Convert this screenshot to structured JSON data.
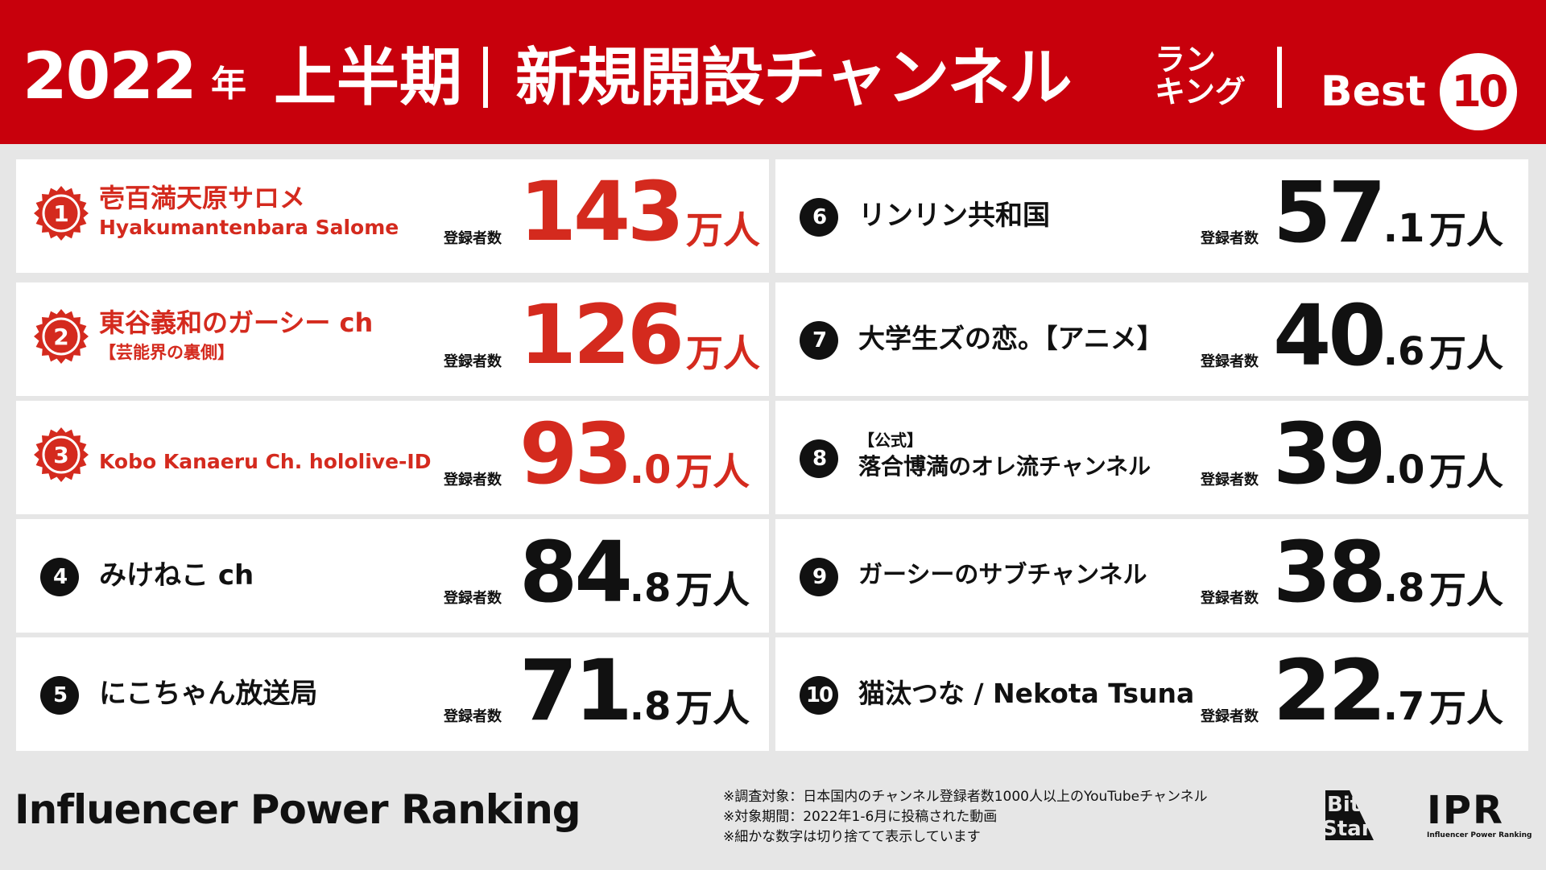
{
  "header": {
    "year": "2022",
    "nen": "年",
    "half": "上半期",
    "main": "新規開設チャンネル",
    "rank_top": "ラン",
    "rank_bottom": "キング",
    "best": "Best",
    "best_num": "10"
  },
  "label": "登録者数",
  "entries": [
    {
      "rank": "1",
      "name": "壱百満天原サロメ",
      "sub": "Hyakumantenbara Salome",
      "int": "143",
      "dec": "",
      "unit": "万人"
    },
    {
      "rank": "2",
      "name": "東谷義和のガーシー ch",
      "sub": "【芸能界の裏側】",
      "int": "126",
      "dec": "",
      "unit": "万人"
    },
    {
      "rank": "3",
      "name": "Kobo Kanaeru Ch. hololive-ID",
      "sub": "",
      "int": "93",
      "dec": ".0",
      "unit": "万人"
    },
    {
      "rank": "4",
      "name": "みけねこ ch",
      "sub": "",
      "int": "84",
      "dec": ".8",
      "unit": "万人"
    },
    {
      "rank": "5",
      "name": "にこちゃん放送局",
      "sub": "",
      "int": "71",
      "dec": ".8",
      "unit": "万人"
    },
    {
      "rank": "6",
      "name": "リンリン共和国",
      "sub": "",
      "int": "57",
      "dec": ".1",
      "unit": "万人"
    },
    {
      "rank": "7",
      "name": "大学生ズの恋。【アニメ】",
      "sub": "",
      "int": "40",
      "dec": ".6",
      "unit": "万人"
    },
    {
      "rank": "8",
      "name": "落合博満のオレ流チャンネル",
      "sub": "【公式】",
      "int": "39",
      "dec": ".0",
      "unit": "万人"
    },
    {
      "rank": "9",
      "name": "ガーシーのサブチャンネル",
      "sub": "",
      "int": "38",
      "dec": ".8",
      "unit": "万人"
    },
    {
      "rank": "10",
      "name": "猫汰つな / Nekota Tsuna",
      "sub": "",
      "int": "22",
      "dec": ".7",
      "unit": "万人"
    }
  ],
  "footer": {
    "title": "Influencer Power Ranking",
    "notes": [
      "※調査対象：日本国内のチャンネル登録者数1000人以上のYouTubeチャンネル",
      "※対象期間：2022年1-6月に投稿された動画",
      "※細かな数字は切り捨てて表示しています"
    ],
    "logo_bitstar": "Bit Star",
    "logo_ipr": "IPR",
    "logo_ipr_sub": "Influencer Power Ranking"
  },
  "colors": {
    "accent": "#c8000c",
    "rank_red": "#d42a1e",
    "text": "#111111"
  }
}
